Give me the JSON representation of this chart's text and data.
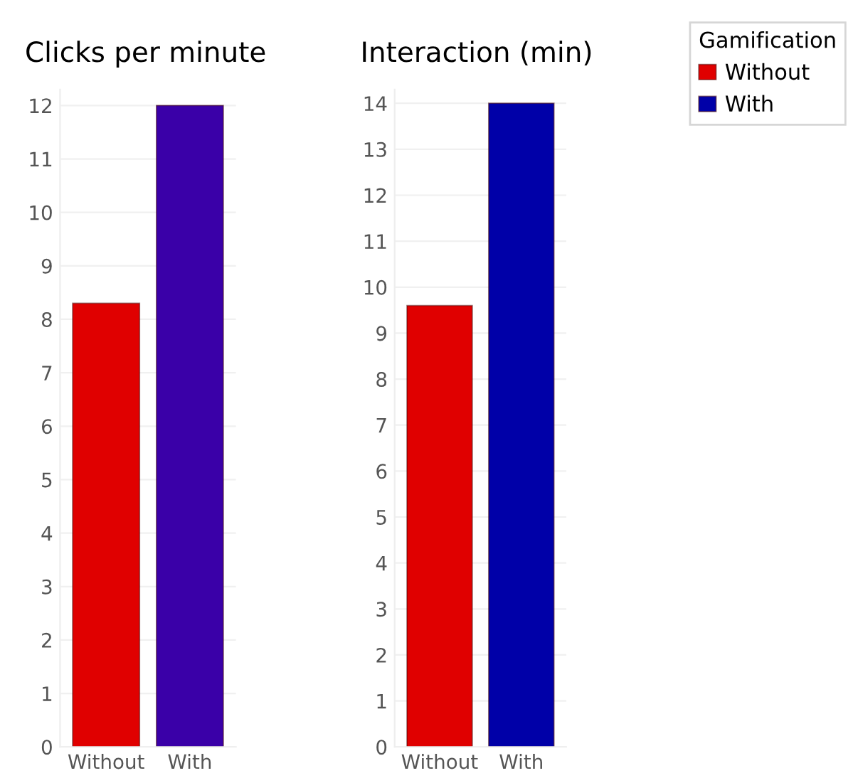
{
  "chart_data": [
    {
      "type": "bar",
      "title": "Clicks per minute",
      "categories": [
        "Without",
        "With"
      ],
      "values": [
        8.3,
        12
      ],
      "colors": [
        "#e00000",
        "#3a00a8"
      ],
      "ylim": [
        0,
        12.3
      ],
      "yticks": [
        0,
        1,
        2,
        3,
        4,
        5,
        6,
        7,
        8,
        9,
        10,
        11,
        12
      ],
      "grid": "y"
    },
    {
      "type": "bar",
      "title": "Interaction (min)",
      "categories": [
        "Without",
        "With"
      ],
      "series": [
        {
          "name": "Without",
          "color": "#e00000",
          "values": [
            9.6,
            null
          ]
        },
        {
          "name": "With",
          "color": "#0000a8",
          "values": [
            null,
            14
          ]
        }
      ],
      "ylim": [
        0,
        14.3
      ],
      "yticks": [
        0,
        1,
        2,
        3,
        4,
        5,
        6,
        7,
        8,
        9,
        10,
        11,
        12,
        13,
        14
      ],
      "grid": "y",
      "legend": "top right",
      "legend_title": "Gamification"
    }
  ]
}
